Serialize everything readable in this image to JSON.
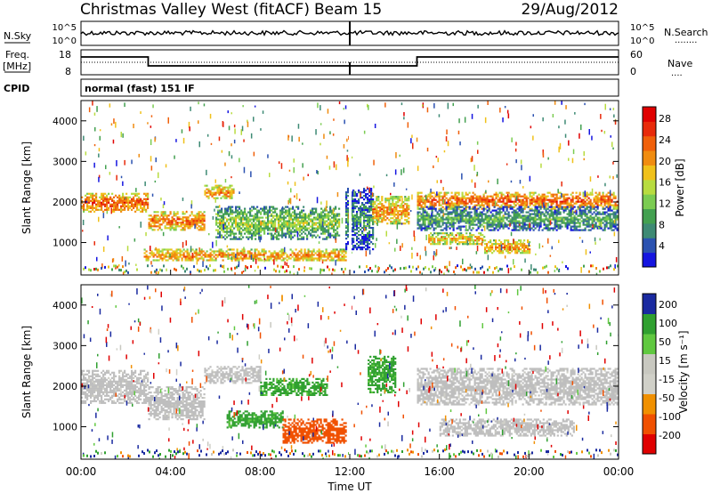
{
  "header": {
    "station": "Christmas Valley West (fitACF)",
    "beam": "Beam 15",
    "date": "29/Aug/2012"
  },
  "nsky_panel": {
    "left_label": "N.Sky",
    "right_label": "N.Search",
    "tick_top": "10^5",
    "tick_bottom": "10^0",
    "right_legend_line": "........"
  },
  "freq_panel": {
    "left_label_1": "Freq.",
    "left_label_2": "[MHz]",
    "left_tick_top": "18",
    "left_tick_bottom": "8",
    "right_tick_top": "60",
    "right_tick_bottom": "0",
    "right_label": "Nave",
    "right_legend_line": "...."
  },
  "cpid": {
    "label": "CPID",
    "value": "normal (fast) 151 IF"
  },
  "colors": {
    "power": [
      "#1515e0",
      "#2b52b0",
      "#3e8a74",
      "#43a050",
      "#7bcc52",
      "#b8dc40",
      "#f0c11a",
      "#f08c10",
      "#f0600a",
      "#e82a0a",
      "#e00000"
    ],
    "velocity": [
      "#e00000",
      "#f05000",
      "#f09000",
      "#d0d0c8",
      "#c8c8c0",
      "#60c840",
      "#30a030",
      "#1a2aa0"
    ],
    "ground_scatter": "#bebebe"
  },
  "chart_data": [
    {
      "type": "heatmap",
      "name_text": "power",
      "ylabel": "Slant Range [km]",
      "yticks": [
        "1000",
        "2000",
        "3000",
        "4000"
      ],
      "ylim": [
        200,
        4500
      ],
      "xlim": [
        0,
        24
      ],
      "colorbar": {
        "label": "Power [dB]",
        "ticks": [
          "4",
          "8",
          "12",
          "16",
          "20",
          "24",
          "28"
        ],
        "range": [
          0,
          30
        ]
      },
      "bands": [
        {
          "t0": 0.0,
          "t1": 3.0,
          "r_center": 2000,
          "r_width": 450,
          "level": 25
        },
        {
          "t0": 3.0,
          "t1": 5.5,
          "r_center": 1550,
          "r_width": 450,
          "level": 24
        },
        {
          "t0": 5.5,
          "t1": 6.8,
          "r_center": 2250,
          "r_width": 350,
          "level": 22
        },
        {
          "t0": 2.8,
          "t1": 11.8,
          "r_center": 700,
          "r_width": 300,
          "level": 22
        },
        {
          "t0": 6.0,
          "t1": 11.5,
          "r_center": 1500,
          "r_width": 800,
          "level": 14
        },
        {
          "t0": 11.8,
          "t1": 13.0,
          "r_center": 1600,
          "r_width": 1500,
          "level": 8
        },
        {
          "t0": 13.0,
          "t1": 14.6,
          "r_center": 1800,
          "r_width": 700,
          "level": 22
        },
        {
          "t0": 15.0,
          "t1": 24.0,
          "r_center": 2050,
          "r_width": 400,
          "level": 25
        },
        {
          "t0": 15.0,
          "t1": 24.0,
          "r_center": 1600,
          "r_width": 600,
          "level": 10
        },
        {
          "t0": 15.5,
          "t1": 18.0,
          "r_center": 1100,
          "r_width": 300,
          "level": 20
        },
        {
          "t0": 18.0,
          "t1": 20.0,
          "r_center": 900,
          "r_width": 350,
          "level": 22
        }
      ]
    },
    {
      "type": "heatmap",
      "name_text": "velocity",
      "ylabel": "Slant Range [km]",
      "yticks": [
        "1000",
        "2000",
        "3000",
        "4000"
      ],
      "ylim": [
        200,
        4500
      ],
      "xlim": [
        0,
        24
      ],
      "xlabel": "Time UT",
      "xticks": [
        "00:00",
        "04:00",
        "08:00",
        "12:00",
        "16:00",
        "20:00",
        "00:00"
      ],
      "colorbar": {
        "label": "Velocity [m s⁻¹]",
        "ticks": [
          "200",
          "100",
          "50",
          "15",
          "-15",
          "-50",
          "-100",
          "-200"
        ],
        "range": [
          -250,
          250
        ]
      },
      "bands": [
        {
          "t0": 0.0,
          "t1": 3.0,
          "r_center": 2000,
          "r_width": 800,
          "level": 0
        },
        {
          "t0": 3.0,
          "t1": 5.5,
          "r_center": 1600,
          "r_width": 800,
          "level": 0
        },
        {
          "t0": 5.5,
          "t1": 8.0,
          "r_center": 2300,
          "r_width": 400,
          "level": 0
        },
        {
          "t0": 8.0,
          "t1": 11.0,
          "r_center": 2000,
          "r_width": 400,
          "level": 60
        },
        {
          "t0": 6.5,
          "t1": 9.0,
          "r_center": 1200,
          "r_width": 400,
          "level": 60
        },
        {
          "t0": 9.0,
          "t1": 11.8,
          "r_center": 900,
          "r_width": 600,
          "level": -80
        },
        {
          "t0": 12.8,
          "t1": 14.0,
          "r_center": 2300,
          "r_width": 900,
          "level": 60
        },
        {
          "t0": 15.0,
          "t1": 24.0,
          "r_center": 2000,
          "r_width": 900,
          "level": 0
        },
        {
          "t0": 16.0,
          "t1": 22.0,
          "r_center": 1000,
          "r_width": 400,
          "level": 0
        }
      ]
    }
  ]
}
